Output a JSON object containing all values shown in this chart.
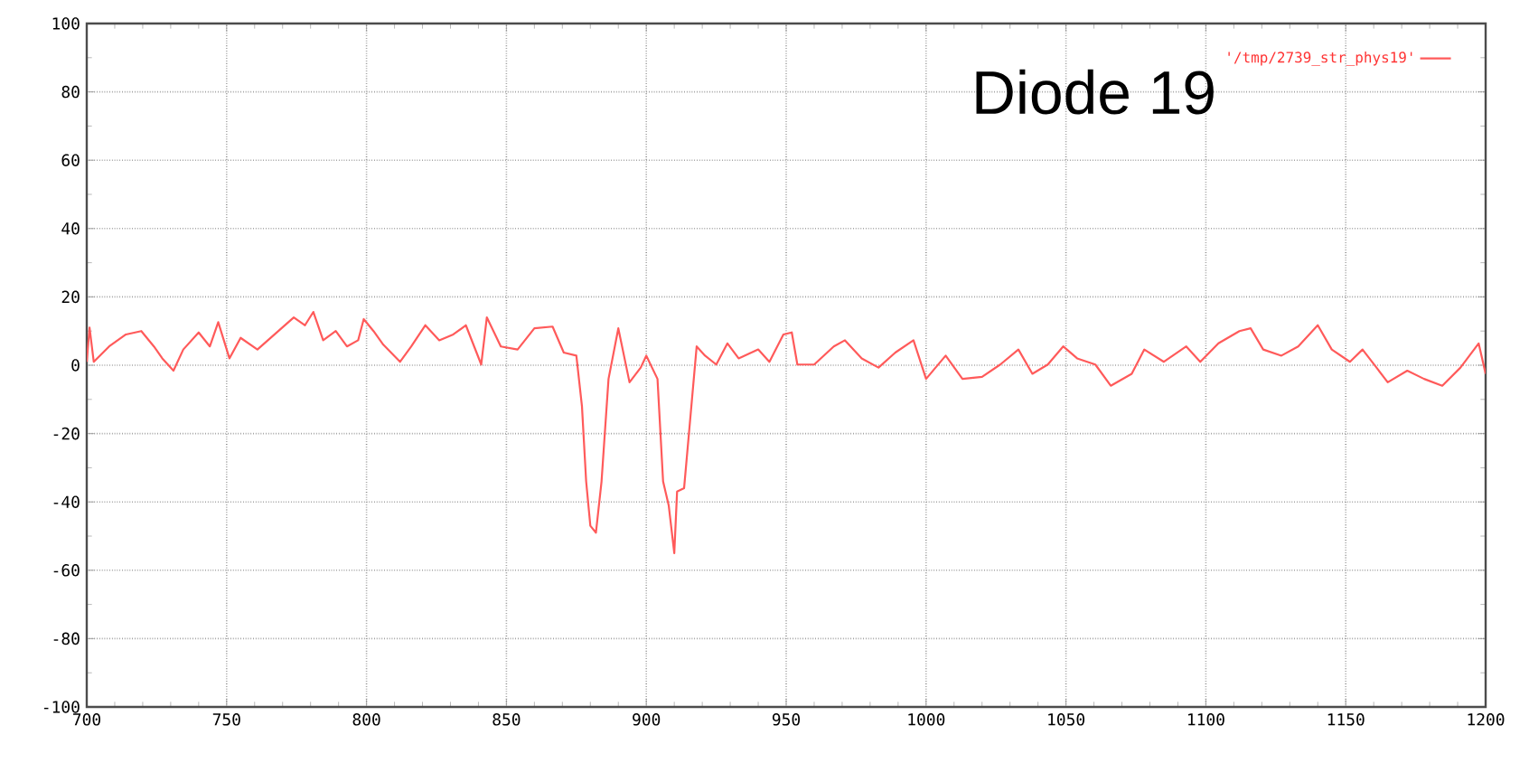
{
  "chart_data": {
    "type": "line",
    "x": [
      700,
      701,
      702.5,
      708,
      714,
      719.5,
      724,
      727,
      731,
      734.5,
      740,
      744,
      747,
      751,
      755,
      761,
      768.5,
      774,
      778,
      781,
      784.5,
      789,
      793,
      797,
      799,
      802.5,
      806,
      812,
      816,
      821,
      826,
      831,
      835.5,
      841,
      843,
      848,
      854,
      860,
      866.5,
      870.5,
      875,
      877,
      878.5,
      880,
      882,
      884,
      886.5,
      890,
      894,
      898,
      900,
      904,
      906,
      908,
      910,
      911,
      913.5,
      918,
      921,
      925,
      929,
      933,
      940,
      944,
      949,
      952,
      954,
      960,
      967,
      971,
      977,
      983,
      989,
      995.5,
      1000,
      1007,
      1013,
      1020,
      1026.5,
      1033,
      1038,
      1043.5,
      1049,
      1054,
      1060.5,
      1066,
      1073.5,
      1078,
      1085,
      1093,
      1098,
      1104.5,
      1112,
      1116,
      1120.5,
      1127,
      1133,
      1140,
      1145,
      1151.5,
      1156,
      1161,
      1165,
      1172,
      1178,
      1184.5,
      1191,
      1197.5,
      1200
    ],
    "series": [
      {
        "name": "'/tmp/2739_str_phys19'",
        "color": "#ff5a5a",
        "values": [
          1,
          11,
          1,
          5.5,
          9,
          10,
          5.5,
          2,
          -1.6,
          4.6,
          9.6,
          5.5,
          12.6,
          2,
          8,
          4.6,
          10,
          14,
          11.7,
          15.6,
          7.3,
          10,
          5.5,
          7.3,
          13.5,
          10,
          6,
          1,
          5.5,
          11.7,
          7.3,
          9,
          11.7,
          0.2,
          14,
          5.5,
          4.6,
          10.8,
          11.3,
          3.7,
          2.8,
          -12,
          -34,
          -47,
          -49,
          -34,
          -4,
          10.8,
          -5,
          -0.7,
          2.8,
          -4,
          -34,
          -41,
          -55,
          -37,
          -36,
          5.5,
          2.8,
          0.2,
          6.4,
          2,
          4.6,
          1,
          9,
          9.6,
          0.2,
          0.2,
          5.5,
          7.3,
          2,
          -0.7,
          3.7,
          7.3,
          -4,
          2.8,
          -4,
          -3.4,
          0.2,
          4.6,
          -2.5,
          0.2,
          5.5,
          2,
          0.2,
          -6,
          -2.5,
          4.6,
          1,
          5.5,
          1,
          6.4,
          10,
          10.8,
          4.6,
          2.8,
          5.5,
          11.7,
          4.6,
          1,
          4.6,
          -0.7,
          -5,
          -1.6,
          -4,
          -6,
          -0.7,
          6.4,
          -2.5
        ]
      }
    ],
    "xlim": [
      700,
      1200
    ],
    "xticks": [
      700,
      750,
      800,
      850,
      900,
      950,
      1000,
      1050,
      1100,
      1150,
      1200
    ],
    "ylim": [
      -100,
      100
    ],
    "yticks": [
      -100,
      -80,
      -60,
      -40,
      -20,
      0,
      20,
      40,
      60,
      80,
      100
    ],
    "grid": true,
    "legend": "top right",
    "marker": "none",
    "line_style": "solid",
    "annotations": [
      "Diode 19"
    ]
  }
}
